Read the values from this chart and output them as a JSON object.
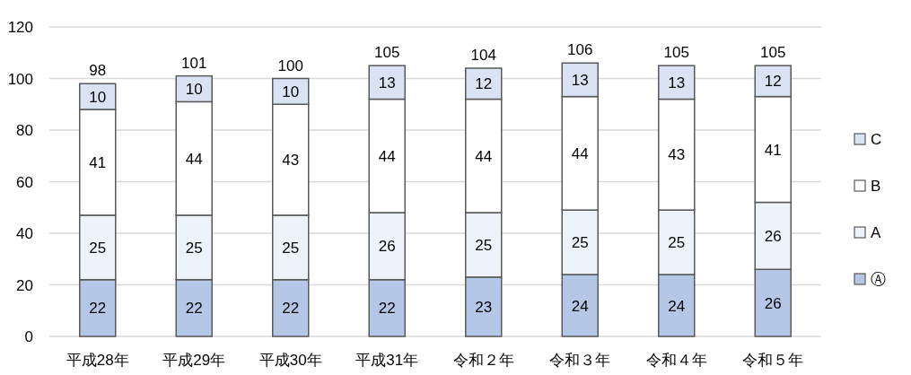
{
  "chart_data": {
    "type": "bar",
    "stacked": true,
    "categories": [
      "平成28年",
      "平成29年",
      "平成30年",
      "平成31年",
      "令和２年",
      "令和３年",
      "令和４年",
      "令和５年"
    ],
    "series": [
      {
        "name": "Ⓐ",
        "color": "#b4c7e7",
        "values": [
          22,
          22,
          22,
          22,
          23,
          24,
          24,
          26
        ]
      },
      {
        "name": "A",
        "color": "#eef2fa",
        "values": [
          25,
          25,
          25,
          26,
          25,
          25,
          25,
          26
        ]
      },
      {
        "name": "B",
        "color": "#ffffff",
        "values": [
          41,
          44,
          43,
          44,
          44,
          44,
          43,
          41
        ]
      },
      {
        "name": "C",
        "color": "#dae3f3",
        "values": [
          10,
          10,
          10,
          13,
          12,
          13,
          13,
          12
        ]
      }
    ],
    "totals": [
      "98",
      "101",
      "100",
      "105",
      "104",
      "106",
      "105",
      "105"
    ],
    "data_labels": true,
    "ylim": [
      0,
      120
    ],
    "yticks": [
      0,
      20,
      40,
      60,
      80,
      100,
      120
    ],
    "grid": "y",
    "legend": "right"
  }
}
